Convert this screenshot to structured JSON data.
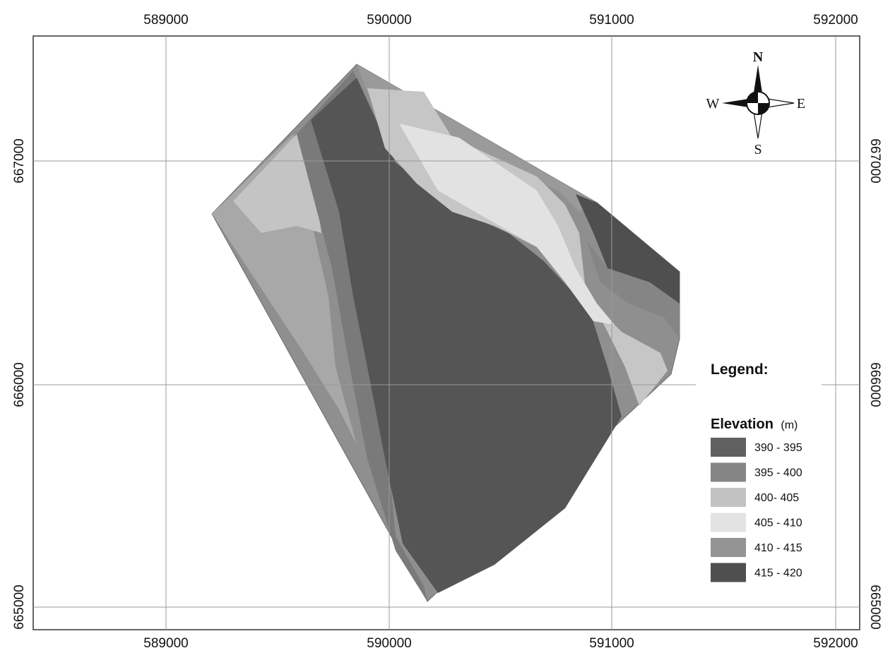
{
  "map": {
    "grid": {
      "x_ticks": [
        "589000",
        "590000",
        "591000",
        "592000"
      ],
      "y_ticks": [
        "667000",
        "666000",
        "665000"
      ]
    },
    "compass": {
      "n": "N",
      "s": "S",
      "e": "E",
      "w": "W"
    },
    "legend": {
      "title": "Legend:",
      "subtitle": "Elevation",
      "unit": "(m)",
      "classes": [
        {
          "label": "390 - 395",
          "color": "#606060"
        },
        {
          "label": "395 - 400",
          "color": "#858585"
        },
        {
          "label": "400- 405",
          "color": "#c2c2c2"
        },
        {
          "label": "405 - 410",
          "color": "#e3e3e3"
        },
        {
          "label": "410 - 415",
          "color": "#949494"
        },
        {
          "label": "415 - 420",
          "color": "#4f4f4f"
        }
      ]
    }
  }
}
